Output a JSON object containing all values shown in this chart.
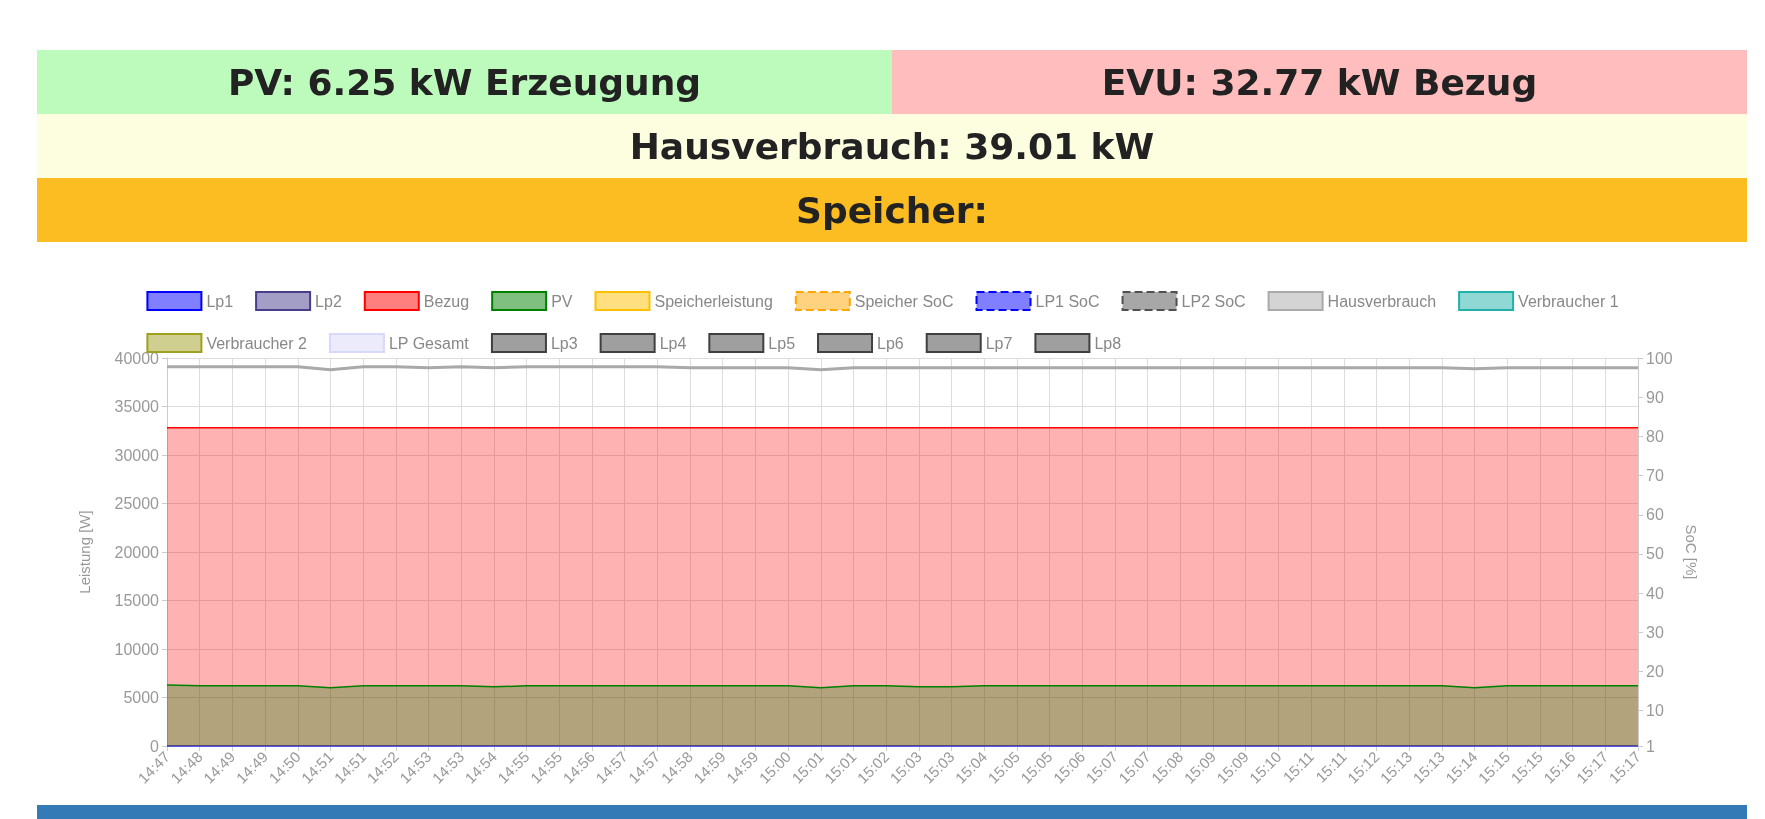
{
  "chart_data": {
    "type": "line",
    "annotations": [
      "PV: 6.25 kW Erzeugung",
      "EVU: 32.77 kW Bezug",
      "Hausverbrauch: 39.01 kW",
      "Speicher:"
    ],
    "ylabel": "Leistung [W]",
    "y2label": "SoC [%]",
    "categories": [
      "14:47",
      "14:48",
      "14:49",
      "14:49",
      "14:50",
      "14:51",
      "14:51",
      "14:52",
      "14:53",
      "14:53",
      "14:54",
      "14:55",
      "14:55",
      "14:56",
      "14:57",
      "14:57",
      "14:58",
      "14:59",
      "14:59",
      "15:00",
      "15:01",
      "15:01",
      "15:02",
      "15:03",
      "15:03",
      "15:04",
      "15:05",
      "15:05",
      "15:06",
      "15:07",
      "15:07",
      "15:08",
      "15:09",
      "15:09",
      "15:10",
      "15:11",
      "15:11",
      "15:12",
      "15:13",
      "15:13",
      "15:14",
      "15:15",
      "15:15",
      "15:16",
      "15:17",
      "15:17"
    ],
    "ylim": [
      0,
      40000
    ],
    "yticks": [
      0,
      5000,
      10000,
      15000,
      20000,
      25000,
      30000,
      35000,
      40000
    ],
    "y2lim": [
      1,
      100
    ],
    "y2ticks": [
      1,
      10,
      20,
      30,
      40,
      50,
      60,
      70,
      80,
      90,
      100
    ],
    "grid": true,
    "legend": "top",
    "marker": "none",
    "series": [
      {
        "name": "Lp1",
        "color": "#0000ff",
        "values": [
          0,
          0,
          0,
          0,
          0,
          0,
          0,
          0,
          0,
          0,
          0,
          0,
          0,
          0,
          0,
          0,
          0,
          0,
          0,
          0,
          0,
          0,
          0,
          0,
          0,
          0,
          0,
          0,
          0,
          0,
          0,
          0,
          0,
          0,
          0,
          0,
          0,
          0,
          0,
          0,
          0,
          0,
          0,
          0,
          0,
          0
        ]
      },
      {
        "name": "Lp2",
        "color": "#483d8b",
        "values": [
          null,
          null,
          null,
          null,
          null,
          null,
          null,
          null,
          null,
          null,
          null,
          null,
          null,
          null,
          null,
          null,
          null,
          null,
          null,
          null,
          null,
          null,
          null,
          null,
          null,
          null,
          null,
          null,
          null,
          null,
          null,
          null,
          null,
          null,
          null,
          null,
          null,
          null,
          null,
          null,
          null,
          null,
          null,
          null,
          null,
          null
        ]
      },
      {
        "name": "Bezug",
        "type": "area",
        "color": "#ff0000",
        "values": [
          32800,
          32800,
          32800,
          32800,
          32800,
          32800,
          32800,
          32800,
          32800,
          32800,
          32800,
          32800,
          32800,
          32800,
          32800,
          32800,
          32800,
          32800,
          32800,
          32800,
          32800,
          32800,
          32800,
          32800,
          32800,
          32800,
          32800,
          32800,
          32800,
          32800,
          32800,
          32800,
          32800,
          32800,
          32800,
          32800,
          32800,
          32800,
          32800,
          32800,
          32800,
          32800,
          32800,
          32800,
          32800,
          32800
        ]
      },
      {
        "name": "PV",
        "type": "area",
        "color": "#008000",
        "values": [
          6300,
          6200,
          6200,
          6200,
          6200,
          6000,
          6200,
          6200,
          6200,
          6200,
          6100,
          6200,
          6200,
          6200,
          6200,
          6200,
          6200,
          6200,
          6200,
          6200,
          6000,
          6200,
          6200,
          6100,
          6100,
          6200,
          6200,
          6200,
          6200,
          6200,
          6200,
          6200,
          6200,
          6200,
          6200,
          6200,
          6200,
          6200,
          6200,
          6200,
          6000,
          6200,
          6200,
          6200,
          6200,
          6200
        ]
      },
      {
        "name": "Speicherleistung",
        "color": "#ffc000",
        "values": [
          null,
          null,
          null,
          null,
          null,
          null,
          null,
          null,
          null,
          null,
          null,
          null,
          null,
          null,
          null,
          null,
          null,
          null,
          null,
          null,
          null,
          null,
          null,
          null,
          null,
          null,
          null,
          null,
          null,
          null,
          null,
          null,
          null,
          null,
          null,
          null,
          null,
          null,
          null,
          null,
          null,
          null,
          null,
          null,
          null,
          null
        ]
      },
      {
        "name": "Speicher SoC",
        "color": "#ffa500",
        "line_style": "dashed",
        "values": [
          null,
          null,
          null,
          null,
          null,
          null,
          null,
          null,
          null,
          null,
          null,
          null,
          null,
          null,
          null,
          null,
          null,
          null,
          null,
          null,
          null,
          null,
          null,
          null,
          null,
          null,
          null,
          null,
          null,
          null,
          null,
          null,
          null,
          null,
          null,
          null,
          null,
          null,
          null,
          null,
          null,
          null,
          null,
          null,
          null,
          null
        ]
      },
      {
        "name": "LP1 SoC",
        "color": "#0000ff",
        "line_style": "dashed",
        "values": [
          null,
          null,
          null,
          null,
          null,
          null,
          null,
          null,
          null,
          null,
          null,
          null,
          null,
          null,
          null,
          null,
          null,
          null,
          null,
          null,
          null,
          null,
          null,
          null,
          null,
          null,
          null,
          null,
          null,
          null,
          null,
          null,
          null,
          null,
          null,
          null,
          null,
          null,
          null,
          null,
          null,
          null,
          null,
          null,
          null,
          null
        ]
      },
      {
        "name": "LP2 SoC",
        "color": "#505050",
        "line_style": "dashed",
        "values": [
          null,
          null,
          null,
          null,
          null,
          null,
          null,
          null,
          null,
          null,
          null,
          null,
          null,
          null,
          null,
          null,
          null,
          null,
          null,
          null,
          null,
          null,
          null,
          null,
          null,
          null,
          null,
          null,
          null,
          null,
          null,
          null,
          null,
          null,
          null,
          null,
          null,
          null,
          null,
          null,
          null,
          null,
          null,
          null,
          null,
          null
        ]
      },
      {
        "name": "Hausverbrauch",
        "color": "#a9a9a9",
        "values": [
          39100,
          39100,
          39100,
          39100,
          39100,
          38800,
          39100,
          39100,
          39000,
          39100,
          39000,
          39100,
          39100,
          39100,
          39100,
          39100,
          39000,
          39000,
          39000,
          39000,
          38800,
          39000,
          39000,
          39000,
          39000,
          39000,
          39000,
          39000,
          39000,
          39000,
          39000,
          39000,
          39000,
          39000,
          39000,
          39000,
          39000,
          39000,
          39000,
          39000,
          38900,
          39000,
          39000,
          39000,
          39000,
          39000
        ]
      },
      {
        "name": "Verbraucher 1",
        "color": "#20b2aa",
        "values": [
          null,
          null,
          null,
          null,
          null,
          null,
          null,
          null,
          null,
          null,
          null,
          null,
          null,
          null,
          null,
          null,
          null,
          null,
          null,
          null,
          null,
          null,
          null,
          null,
          null,
          null,
          null,
          null,
          null,
          null,
          null,
          null,
          null,
          null,
          null,
          null,
          null,
          null,
          null,
          null,
          null,
          null,
          null,
          null,
          null,
          null
        ]
      },
      {
        "name": "Verbraucher 2",
        "color": "#a0a020",
        "values": [
          null,
          null,
          null,
          null,
          null,
          null,
          null,
          null,
          null,
          null,
          null,
          null,
          null,
          null,
          null,
          null,
          null,
          null,
          null,
          null,
          null,
          null,
          null,
          null,
          null,
          null,
          null,
          null,
          null,
          null,
          null,
          null,
          null,
          null,
          null,
          null,
          null,
          null,
          null,
          null,
          null,
          null,
          null,
          null,
          null,
          null
        ]
      },
      {
        "name": "LP Gesamt",
        "color": "#d8d8f8",
        "values": [
          null,
          null,
          null,
          null,
          null,
          null,
          null,
          null,
          null,
          null,
          null,
          null,
          null,
          null,
          null,
          null,
          null,
          null,
          null,
          null,
          null,
          null,
          null,
          null,
          null,
          null,
          null,
          null,
          null,
          null,
          null,
          null,
          null,
          null,
          null,
          null,
          null,
          null,
          null,
          null,
          null,
          null,
          null,
          null,
          null,
          null
        ]
      },
      {
        "name": "Lp3",
        "color": "#404040",
        "values": [
          null,
          null,
          null,
          null,
          null,
          null,
          null,
          null,
          null,
          null,
          null,
          null,
          null,
          null,
          null,
          null,
          null,
          null,
          null,
          null,
          null,
          null,
          null,
          null,
          null,
          null,
          null,
          null,
          null,
          null,
          null,
          null,
          null,
          null,
          null,
          null,
          null,
          null,
          null,
          null,
          null,
          null,
          null,
          null,
          null,
          null
        ]
      },
      {
        "name": "Lp4",
        "color": "#404040",
        "values": [
          null,
          null,
          null,
          null,
          null,
          null,
          null,
          null,
          null,
          null,
          null,
          null,
          null,
          null,
          null,
          null,
          null,
          null,
          null,
          null,
          null,
          null,
          null,
          null,
          null,
          null,
          null,
          null,
          null,
          null,
          null,
          null,
          null,
          null,
          null,
          null,
          null,
          null,
          null,
          null,
          null,
          null,
          null,
          null,
          null,
          null
        ]
      },
      {
        "name": "Lp5",
        "color": "#404040",
        "values": [
          null,
          null,
          null,
          null,
          null,
          null,
          null,
          null,
          null,
          null,
          null,
          null,
          null,
          null,
          null,
          null,
          null,
          null,
          null,
          null,
          null,
          null,
          null,
          null,
          null,
          null,
          null,
          null,
          null,
          null,
          null,
          null,
          null,
          null,
          null,
          null,
          null,
          null,
          null,
          null,
          null,
          null,
          null,
          null,
          null,
          null
        ]
      },
      {
        "name": "Lp6",
        "color": "#404040",
        "values": [
          null,
          null,
          null,
          null,
          null,
          null,
          null,
          null,
          null,
          null,
          null,
          null,
          null,
          null,
          null,
          null,
          null,
          null,
          null,
          null,
          null,
          null,
          null,
          null,
          null,
          null,
          null,
          null,
          null,
          null,
          null,
          null,
          null,
          null,
          null,
          null,
          null,
          null,
          null,
          null,
          null,
          null,
          null,
          null,
          null,
          null
        ]
      },
      {
        "name": "Lp7",
        "color": "#404040",
        "values": [
          null,
          null,
          null,
          null,
          null,
          null,
          null,
          null,
          null,
          null,
          null,
          null,
          null,
          null,
          null,
          null,
          null,
          null,
          null,
          null,
          null,
          null,
          null,
          null,
          null,
          null,
          null,
          null,
          null,
          null,
          null,
          null,
          null,
          null,
          null,
          null,
          null,
          null,
          null,
          null,
          null,
          null,
          null,
          null,
          null,
          null
        ]
      },
      {
        "name": "Lp8",
        "color": "#404040",
        "values": [
          null,
          null,
          null,
          null,
          null,
          null,
          null,
          null,
          null,
          null,
          null,
          null,
          null,
          null,
          null,
          null,
          null,
          null,
          null,
          null,
          null,
          null,
          null,
          null,
          null,
          null,
          null,
          null,
          null,
          null,
          null,
          null,
          null,
          null,
          null,
          null,
          null,
          null,
          null,
          null,
          null,
          null,
          null,
          null,
          null,
          null
        ]
      }
    ]
  }
}
